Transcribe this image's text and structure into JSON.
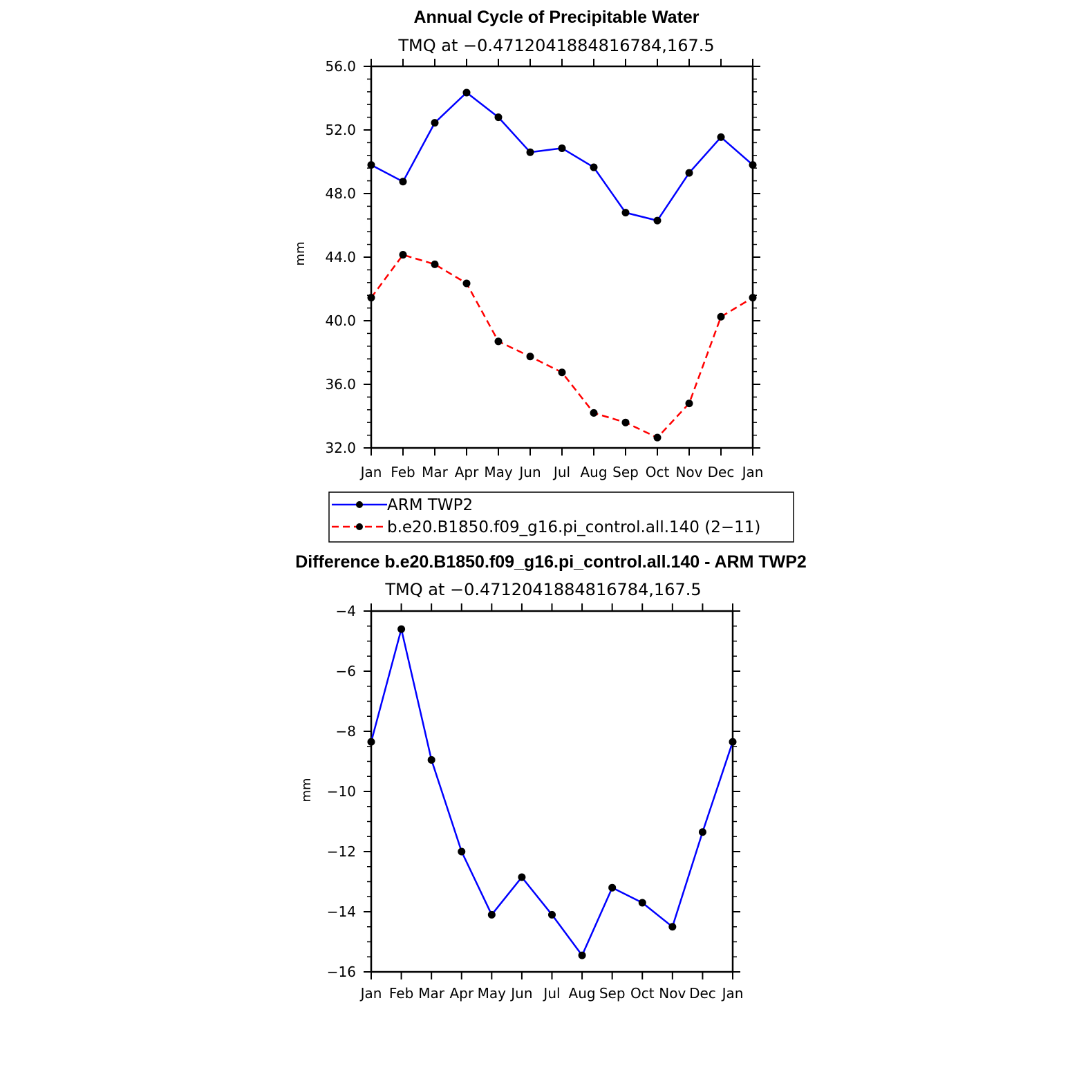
{
  "chart_data": [
    {
      "type": "line",
      "title": "Annual Cycle of Precipitable Water",
      "subtitle": "TMQ at −0.4712041884816784,167.5",
      "xlabel": "",
      "ylabel": "mm",
      "categories": [
        "Jan",
        "Feb",
        "Mar",
        "Apr",
        "May",
        "Jun",
        "Jul",
        "Aug",
        "Sep",
        "Oct",
        "Nov",
        "Dec",
        "Jan"
      ],
      "ylim": [
        32.0,
        56.0
      ],
      "yticks": [
        32.0,
        36.0,
        40.0,
        44.0,
        48.0,
        52.0,
        56.0
      ],
      "ytick_labels": [
        "32.0",
        "36.0",
        "40.0",
        "44.0",
        "48.0",
        "52.0",
        "56.0"
      ],
      "series": [
        {
          "name": "ARM TWP2",
          "color": "#0000ff",
          "dash": "solid",
          "values": [
            49.8,
            48.75,
            52.45,
            54.35,
            52.8,
            50.6,
            50.85,
            49.65,
            46.8,
            46.3,
            49.3,
            51.55,
            49.8
          ]
        },
        {
          "name": "b.e20.B1850.f09_g16.pi_control.all.140 (2−11)",
          "color": "#ff0000",
          "dash": "dashed",
          "values": [
            41.45,
            44.15,
            43.55,
            42.35,
            38.7,
            37.75,
            36.75,
            34.2,
            33.6,
            32.65,
            34.8,
            40.25,
            41.45
          ]
        }
      ],
      "legend": {
        "position": "bottom",
        "entries": [
          "ARM TWP2",
          "b.e20.B1850.f09_g16.pi_control.all.140 (2−11)"
        ]
      }
    },
    {
      "type": "line",
      "title": "Difference b.e20.B1850.f09_g16.pi_control.all.140 - ARM TWP2",
      "subtitle": "TMQ at −0.4712041884816784,167.5",
      "xlabel": "",
      "ylabel": "mm",
      "categories": [
        "Jan",
        "Feb",
        "Mar",
        "Apr",
        "May",
        "Jun",
        "Jul",
        "Aug",
        "Sep",
        "Oct",
        "Nov",
        "Dec",
        "Jan"
      ],
      "ylim": [
        -16,
        -4
      ],
      "yticks": [
        -16,
        -14,
        -12,
        -10,
        -8,
        -6,
        -4
      ],
      "ytick_labels": [
        "−16",
        "−14",
        "−12",
        "−10",
        "−8",
        "−6",
        "−4"
      ],
      "series": [
        {
          "name": "Difference",
          "color": "#0000ff",
          "dash": "solid",
          "values": [
            -8.35,
            -4.6,
            -8.95,
            -12.0,
            -14.1,
            -12.85,
            -14.1,
            -15.45,
            -13.2,
            -13.7,
            -14.5,
            -11.35,
            -8.35
          ]
        }
      ]
    }
  ]
}
